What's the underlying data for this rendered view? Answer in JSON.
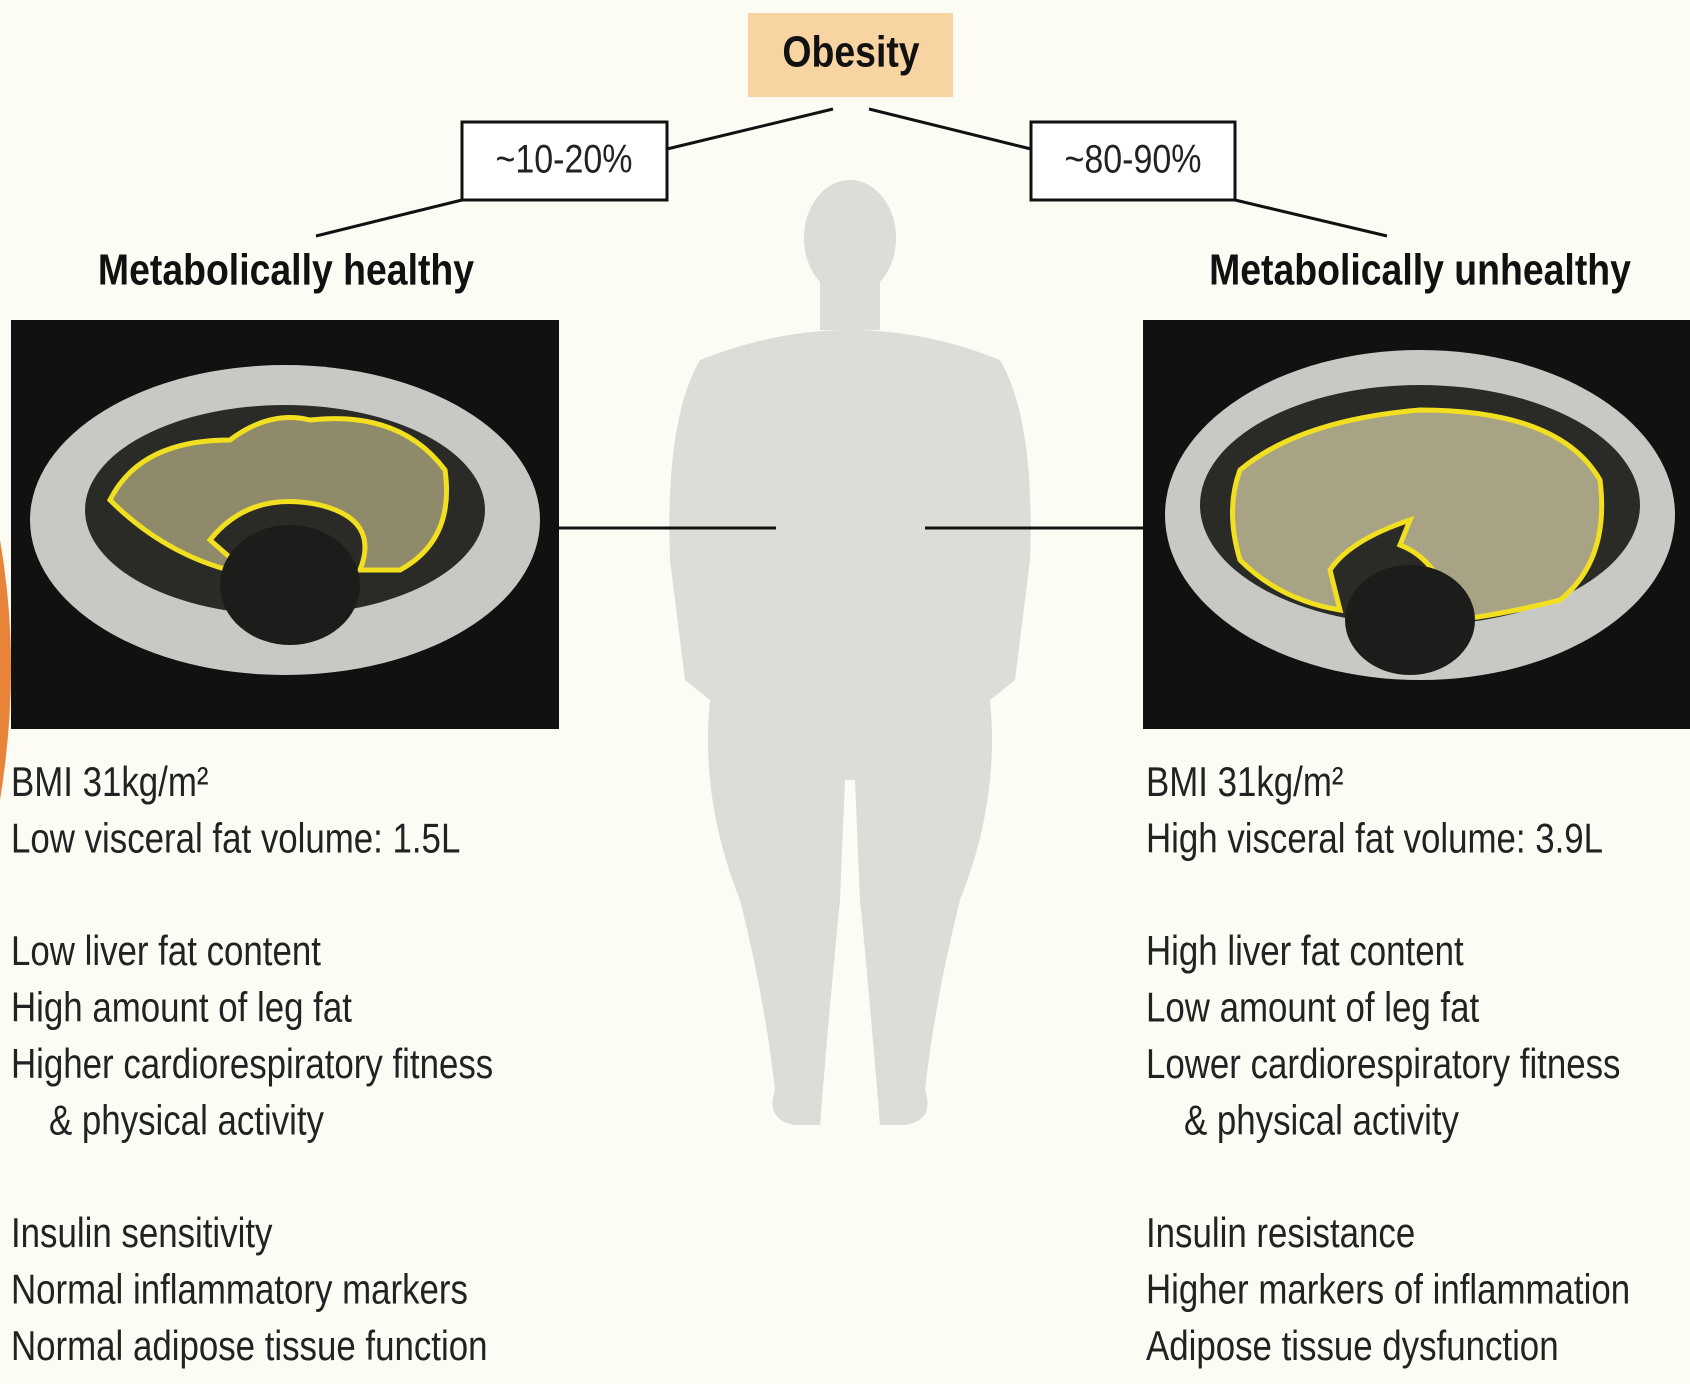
{
  "title": "Obesity",
  "left": {
    "percent": "~10-20%",
    "heading": "Metabolically healthy",
    "groups": [
      [
        "BMI 31kg/m²",
        "Low visceral fat volume: 1.5L"
      ],
      [
        "Low liver fat content",
        "High amount of leg fat",
        "Higher cardiorespiratory fitness",
        "& physical activity"
      ],
      [
        "Insulin sensitivity",
        "Normal inflammatory markers",
        "Normal adipose tissue function"
      ]
    ]
  },
  "right": {
    "percent": "~80-90%",
    "heading": "Metabolically unhealthy",
    "groups": [
      [
        "BMI 31kg/m²",
        "High visceral fat volume: 3.9L"
      ],
      [
        "High liver fat content",
        "Low amount of leg fat",
        "Lower cardiorespiratory fitness",
        "& physical activity"
      ],
      [
        "Insulin resistance",
        "Higher markers of inflammation",
        "Adipose tissue dysfunction"
      ]
    ]
  }
}
